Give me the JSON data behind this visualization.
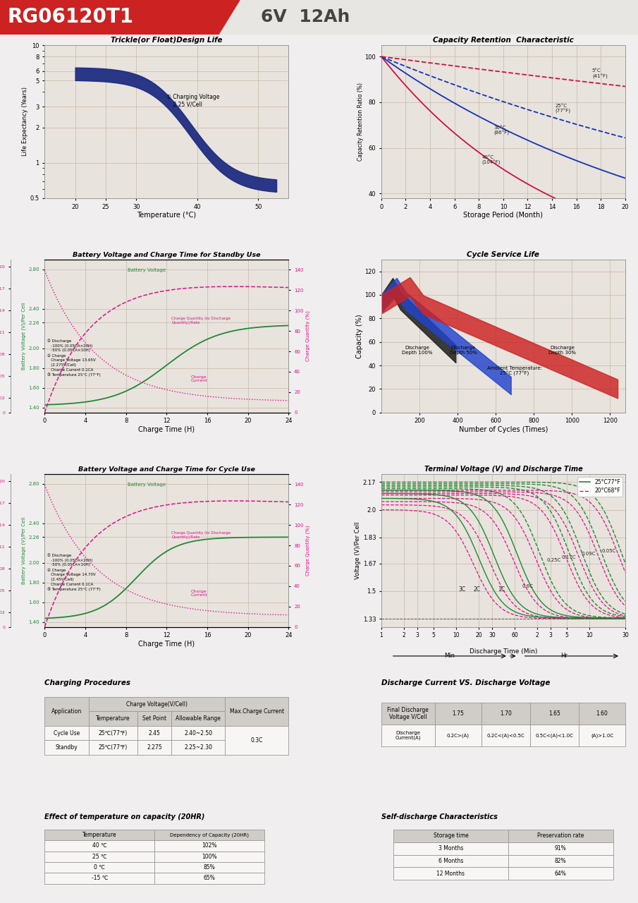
{
  "header_model": "RG06120T1",
  "header_spec": "6V  12Ah",
  "header_red": "#cc2222",
  "header_gray": "#e8e6e2",
  "bg_color": "#f0eeee",
  "panel_bg": "#e8e3dd",
  "grid_color": "#c8b8a8",
  "chart1_title": "Trickle(or Float)Design Life",
  "chart1_xlabel": "Temperature (°C)",
  "chart1_ylabel": "Life Expectancy (Years)",
  "chart1_xticks": [
    20,
    25,
    30,
    40,
    50
  ],
  "chart1_yticks": [
    0.5,
    1,
    2,
    3,
    5,
    6,
    8,
    10
  ],
  "chart1_yticklabels": [
    "0.5",
    "1",
    "2",
    "3",
    "5",
    "6",
    "8",
    "10"
  ],
  "chart2_title": "Capacity Retention  Characteristic",
  "chart2_xlabel": "Storage Period (Month)",
  "chart2_ylabel": "Capacity Retention Ratio (%)",
  "chart2_xticks": [
    0,
    2,
    4,
    6,
    8,
    10,
    12,
    14,
    16,
    18,
    20
  ],
  "chart2_yticks": [
    40,
    60,
    80,
    100
  ],
  "chart3_title": "Battery Voltage and Charge Time for Standby Use",
  "chart3_xlabel": "Charge Time (H)",
  "chart3_xticks": [
    0,
    4,
    8,
    12,
    16,
    20,
    24
  ],
  "chart4_title": "Cycle Service Life",
  "chart4_xlabel": "Number of Cycles (Times)",
  "chart4_ylabel": "Capacity (%)",
  "chart4_xticks": [
    200,
    400,
    600,
    800,
    1000,
    1200
  ],
  "chart4_yticks": [
    0,
    20,
    40,
    60,
    80,
    100,
    120
  ],
  "chart5_title": "Battery Voltage and Charge Time for Cycle Use",
  "chart5_xlabel": "Charge Time (H)",
  "chart5_xticks": [
    0,
    4,
    8,
    12,
    16,
    20,
    24
  ],
  "chart6_title": "Terminal Voltage (V) and Discharge Time",
  "chart6_xlabel": "Discharge Time (Min)",
  "chart6_ylabel": "Voltage (V)/Per Cell",
  "chart6_yticks": [
    1.33,
    1.5,
    1.67,
    1.83,
    2.0,
    2.17
  ],
  "chart6_yticklabels": [
    "1.33",
    "1.5",
    "1.67",
    "1.83",
    "2.0",
    "2.17"
  ],
  "table1_title": "Charging Procedures",
  "table2_title": "Discharge Current VS. Discharge Voltage",
  "table3_title": "Effect of temperature on capacity (20HR)",
  "table4_title": "Self-discharge Characteristics",
  "table3_data": [
    [
      "40 ℃",
      "102%"
    ],
    [
      "25 ℃",
      "100%"
    ],
    [
      "0 ℃",
      "85%"
    ],
    [
      "-15 ℃",
      "65%"
    ]
  ],
  "table4_data": [
    [
      "3 Months",
      "91%"
    ],
    [
      "6 Months",
      "82%"
    ],
    [
      "12 Months",
      "64%"
    ]
  ],
  "footer_color": "#cc2222"
}
